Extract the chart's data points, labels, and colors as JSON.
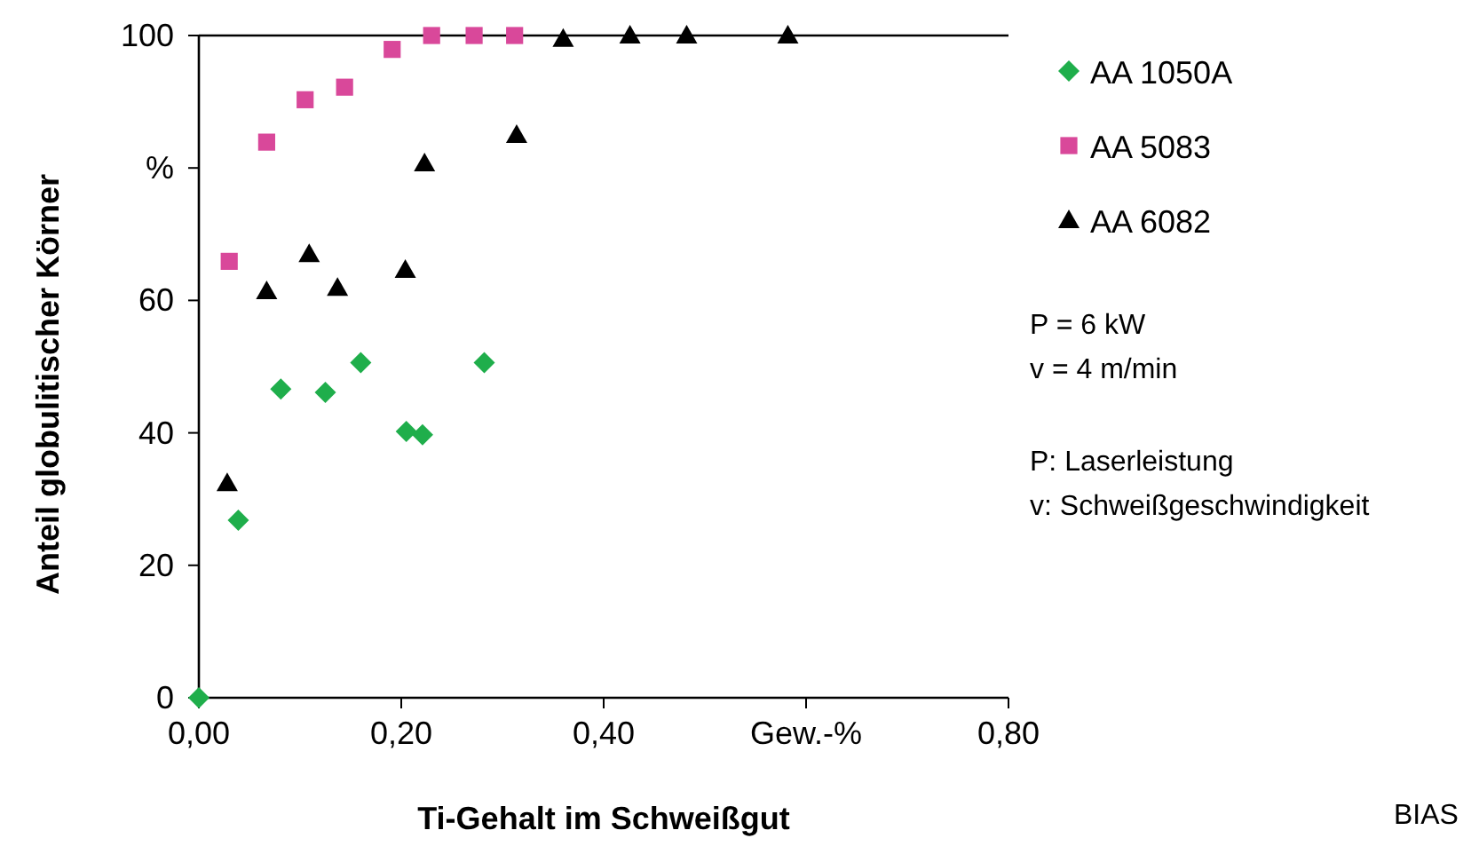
{
  "chart_data": {
    "type": "scatter",
    "xlabel": "Ti-Gehalt im Schweißgut",
    "ylabel": "Anteil globulitischer Körner",
    "xlim": [
      0,
      0.8
    ],
    "ylim": [
      0,
      100
    ],
    "xticks": [
      {
        "value": 0,
        "label": "0,00"
      },
      {
        "value": 0.2,
        "label": "0,20"
      },
      {
        "value": 0.4,
        "label": "0,40"
      },
      {
        "value": 0.6,
        "label": "Gew.-%"
      },
      {
        "value": 0.8,
        "label": "0,80"
      }
    ],
    "yticks": [
      0,
      20,
      40,
      60,
      {
        "value": 80,
        "label": "%"
      },
      100
    ],
    "grid": false,
    "legend": "right",
    "series": [
      {
        "name": "AA 1050A",
        "color": "#1fae4b",
        "marker": "diamond",
        "x": [
          0,
          0.039,
          0.081,
          0.125,
          0.16,
          0.205,
          0.221,
          0.282
        ],
        "values": [
          0,
          26.8,
          46.6,
          46.1,
          50.6,
          40.2,
          39.7,
          50.6
        ]
      },
      {
        "name": "AA 5083",
        "color": "#d9489a",
        "marker": "square",
        "x": [
          0.03,
          0.067,
          0.105,
          0.144,
          0.191,
          0.23,
          0.272,
          0.312
        ],
        "values": [
          65.9,
          83.9,
          90.3,
          92.2,
          97.9,
          100,
          100,
          100
        ]
      },
      {
        "name": "AA 6082",
        "color": "#000000",
        "marker": "triangle",
        "x": [
          0.028,
          0.067,
          0.109,
          0.137,
          0.204,
          0.223,
          0.314,
          0.36,
          0.426,
          0.482,
          0.582
        ],
        "values": [
          32.4,
          61.4,
          67,
          61.9,
          64.6,
          80.7,
          85,
          99.5,
          100,
          100,
          100
        ]
      }
    ],
    "annotations": [
      "P = 6 kW",
      "v = 4 m/min",
      "P: Laserleistung",
      "v: Schweißgeschwindigkeit",
      "BIAS"
    ]
  }
}
